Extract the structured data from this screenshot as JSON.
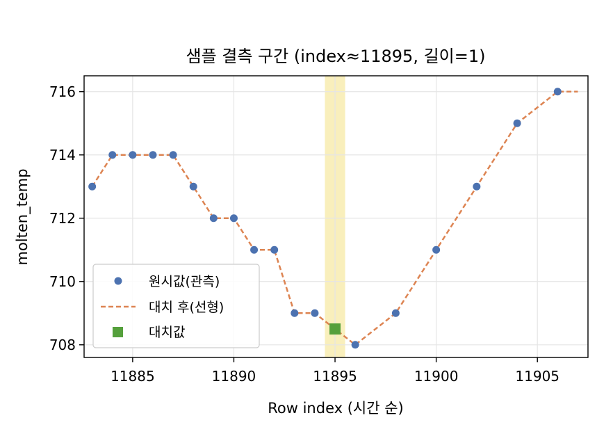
{
  "chart_data": {
    "type": "line",
    "title": "샘플 결측 구간 (index≈11895, 길이=1)",
    "xlabel": "Row index (시간 순)",
    "ylabel": "molten_temp",
    "xlim": [
      11882.6,
      11907.5
    ],
    "ylim": [
      707.6,
      716.5
    ],
    "x_ticks": [
      11885,
      11890,
      11895,
      11900,
      11905
    ],
    "x_tick_labels": [
      "11885",
      "11890",
      "11895",
      "11900",
      "11905"
    ],
    "y_ticks": [
      708,
      710,
      712,
      714,
      716
    ],
    "y_tick_labels": [
      "708",
      "710",
      "712",
      "714",
      "716"
    ],
    "grid": true,
    "legend_position": "lower-left",
    "highlight_span": {
      "x_start": 11894.5,
      "x_end": 11895.5
    },
    "series": [
      {
        "name": "원시값(관측)",
        "kind": "scatter",
        "color": "#4c72b0",
        "points": [
          [
            11883,
            713
          ],
          [
            11884,
            714
          ],
          [
            11885,
            714
          ],
          [
            11886,
            714
          ],
          [
            11887,
            714
          ],
          [
            11888,
            713
          ],
          [
            11889,
            712
          ],
          [
            11890,
            712
          ],
          [
            11891,
            711
          ],
          [
            11892,
            711
          ],
          [
            11893,
            709
          ],
          [
            11894,
            709
          ],
          [
            11896,
            708
          ],
          [
            11898,
            709
          ],
          [
            11900,
            711
          ],
          [
            11902,
            713
          ],
          [
            11904,
            715
          ],
          [
            11906,
            716
          ]
        ]
      },
      {
        "name": "대치 후(선형)",
        "kind": "dashed-line",
        "color": "#dd8452",
        "points": [
          [
            11883,
            713
          ],
          [
            11884,
            714
          ],
          [
            11885,
            714
          ],
          [
            11886,
            714
          ],
          [
            11887,
            714
          ],
          [
            11888,
            713
          ],
          [
            11889,
            712
          ],
          [
            11890,
            712
          ],
          [
            11891,
            711
          ],
          [
            11892,
            711
          ],
          [
            11893,
            709
          ],
          [
            11894,
            709
          ],
          [
            11895,
            708.5
          ],
          [
            11896,
            708
          ],
          [
            11897,
            708.5
          ],
          [
            11898,
            709
          ],
          [
            11899,
            710
          ],
          [
            11900,
            711
          ],
          [
            11901,
            712
          ],
          [
            11902,
            713
          ],
          [
            11903,
            714
          ],
          [
            11904,
            715
          ],
          [
            11905,
            715.5
          ],
          [
            11906,
            716
          ],
          [
            11907,
            716
          ]
        ]
      },
      {
        "name": "대치값",
        "kind": "square-marker",
        "color": "#55a03c",
        "points": [
          [
            11895,
            708.5
          ]
        ]
      }
    ],
    "colors": {
      "highlight": "#f7e9a6",
      "grid": "#e5e5e5",
      "axis": "#000000"
    }
  }
}
